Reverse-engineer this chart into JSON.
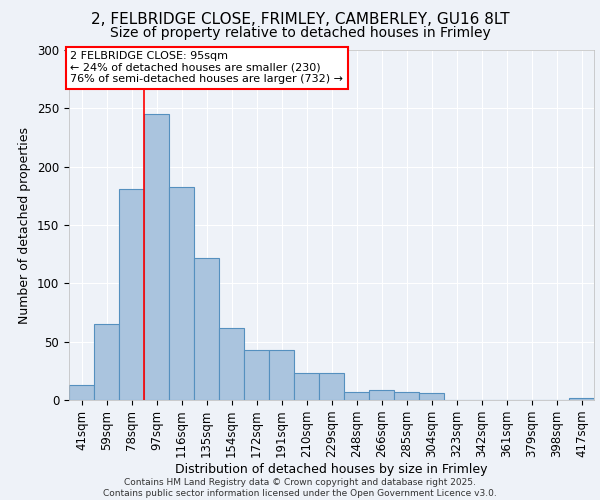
{
  "title_line1": "2, FELBRIDGE CLOSE, FRIMLEY, CAMBERLEY, GU16 8LT",
  "title_line2": "Size of property relative to detached houses in Frimley",
  "categories": [
    "41sqm",
    "59sqm",
    "78sqm",
    "97sqm",
    "116sqm",
    "135sqm",
    "154sqm",
    "172sqm",
    "191sqm",
    "210sqm",
    "229sqm",
    "248sqm",
    "266sqm",
    "285sqm",
    "304sqm",
    "323sqm",
    "342sqm",
    "361sqm",
    "379sqm",
    "398sqm",
    "417sqm"
  ],
  "values": [
    13,
    65,
    181,
    245,
    183,
    122,
    62,
    43,
    43,
    23,
    23,
    7,
    9,
    7,
    6,
    0,
    0,
    0,
    0,
    0,
    2
  ],
  "bar_color": "#aac4de",
  "bar_edge_color": "#5590bf",
  "xlabel": "Distribution of detached houses by size in Frimley",
  "ylabel": "Number of detached properties",
  "ylim": [
    0,
    300
  ],
  "yticks": [
    0,
    50,
    100,
    150,
    200,
    250,
    300
  ],
  "annotation_box_text": "2 FELBRIDGE CLOSE: 95sqm\n← 24% of detached houses are smaller (230)\n76% of semi-detached houses are larger (732) →",
  "vline_index": 3,
  "footer_text": "Contains HM Land Registry data © Crown copyright and database right 2025.\nContains public sector information licensed under the Open Government Licence v3.0.",
  "background_color": "#eef2f8",
  "grid_color": "#ffffff",
  "title_fontsize": 11,
  "subtitle_fontsize": 10,
  "label_fontsize": 9,
  "tick_fontsize": 8.5,
  "footer_fontsize": 6.5
}
